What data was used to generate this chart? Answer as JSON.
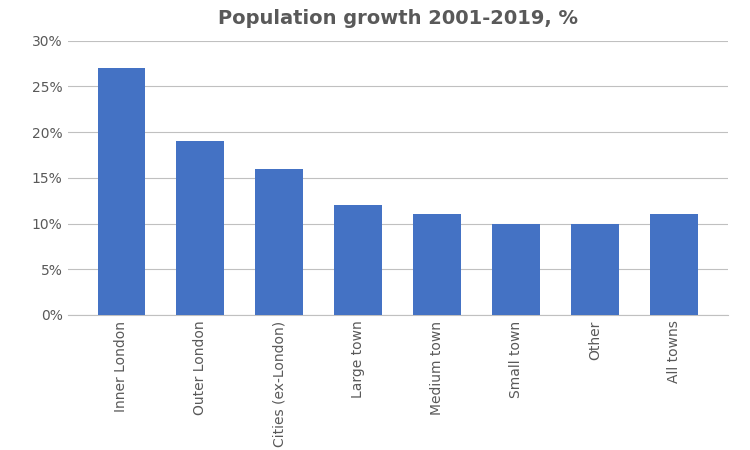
{
  "title": "Population growth 2001-2019, %",
  "categories": [
    "Inner London",
    "Outer London",
    "Cities (ex-London)",
    "Large town",
    "Medium town",
    "Small town",
    "Other",
    "All towns"
  ],
  "values": [
    27,
    19,
    16,
    12,
    11,
    10,
    10,
    11
  ],
  "bar_color": "#4472C4",
  "ylim": [
    0,
    30
  ],
  "yticks": [
    0,
    5,
    10,
    15,
    20,
    25,
    30
  ],
  "yticklabels": [
    "0%",
    "5%",
    "10%",
    "15%",
    "20%",
    "25%",
    "30%"
  ],
  "background_color": "#ffffff",
  "grid_color": "#c0c0c0",
  "title_fontsize": 14,
  "tick_fontsize": 10,
  "label_color": "#595959",
  "bar_width": 0.6
}
